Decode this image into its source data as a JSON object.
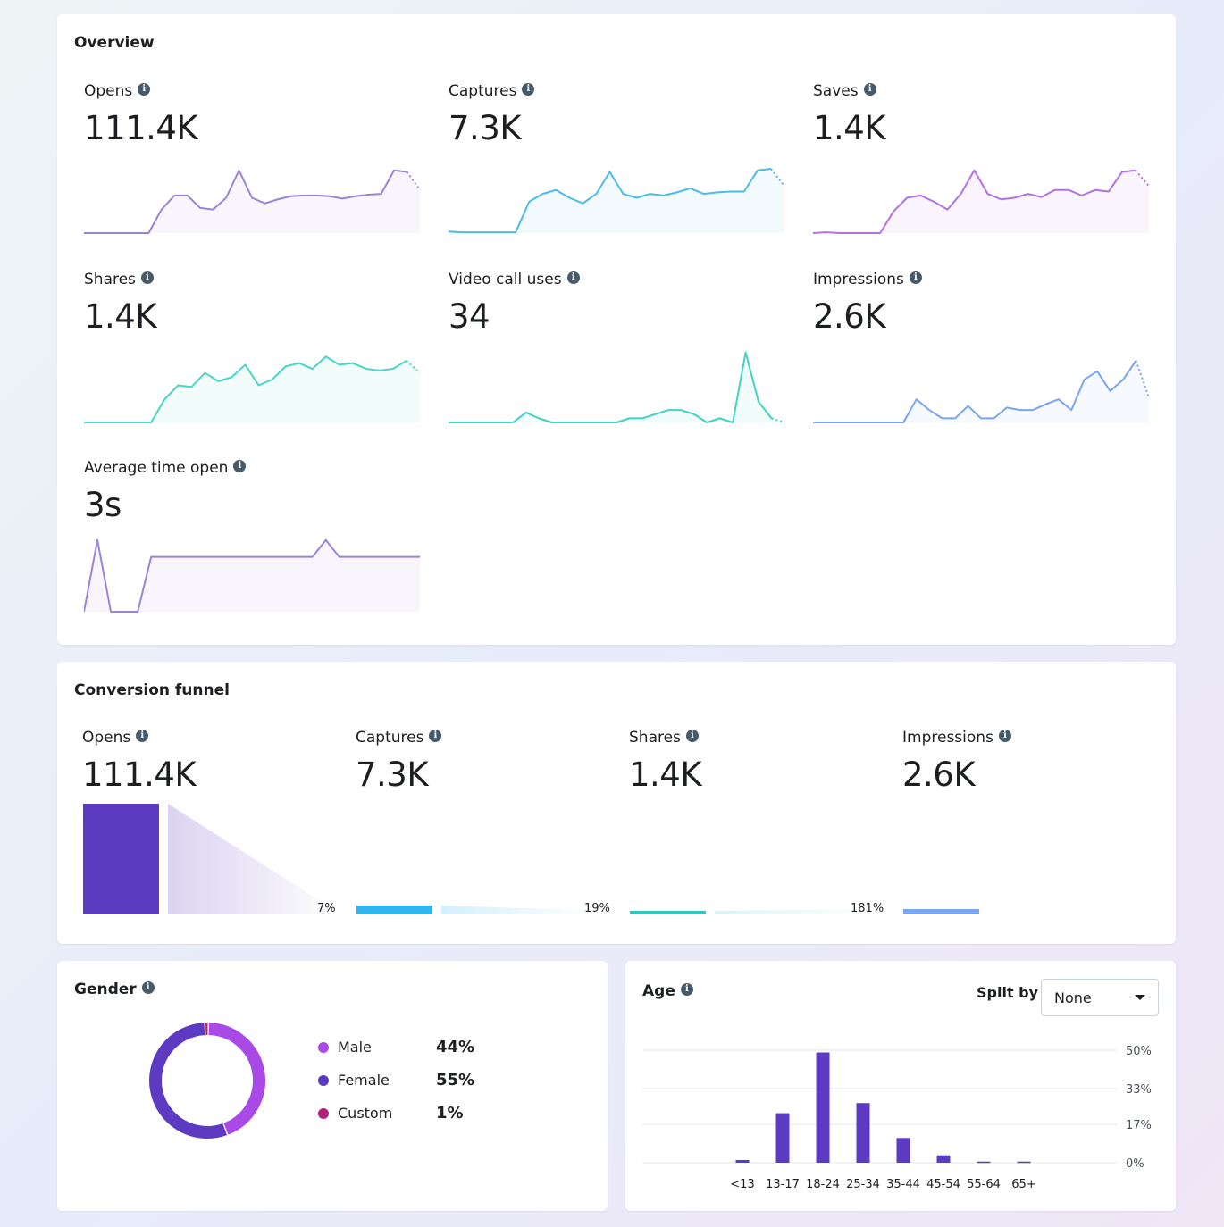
{
  "overview": {
    "title": "Overview",
    "metrics": [
      {
        "label": "Opens",
        "value": "111.4K"
      },
      {
        "label": "Captures",
        "value": "7.3K"
      },
      {
        "label": "Saves",
        "value": "1.4K"
      },
      {
        "label": "Shares",
        "value": "1.4K"
      },
      {
        "label": "Video call uses",
        "value": "34"
      },
      {
        "label": "Impressions",
        "value": "2.6K"
      },
      {
        "label": "Average time open",
        "value": "3s"
      }
    ]
  },
  "colors": {
    "opens": "#9b84d6",
    "captures": "#4cbce6",
    "saves": "#b272e6",
    "shares": "#46d6c6",
    "video": "#3fd3c3",
    "impressions": "#7aa5f2",
    "avg": "#9b84d6",
    "funnel_opens": "#5c3bc2",
    "funnel_captures": "#2fb4ec",
    "funnel_shares": "#2ec8c0",
    "funnel_impressions": "#7aa5f2",
    "male": "#a94ae6",
    "female": "#5c3bc2",
    "custom": "#b0207a",
    "age_bar": "#5c3bc2"
  },
  "funnel": {
    "title": "Conversion funnel",
    "steps": [
      {
        "label": "Opens",
        "value": "111.4K",
        "pct": "7%"
      },
      {
        "label": "Captures",
        "value": "7.3K",
        "pct": "19%"
      },
      {
        "label": "Shares",
        "value": "1.4K",
        "pct": "181%"
      },
      {
        "label": "Impressions",
        "value": "2.6K"
      }
    ]
  },
  "gender": {
    "title": "Gender",
    "items": [
      {
        "label": "Male",
        "pct": "44%"
      },
      {
        "label": "Female",
        "pct": "55%"
      },
      {
        "label": "Custom",
        "pct": "1%"
      }
    ]
  },
  "age": {
    "title": "Age",
    "split_label": "Split by",
    "split_value": "None"
  },
  "chart_data": [
    {
      "type": "line",
      "name": "opens-sparkline",
      "values": [
        0,
        0,
        0,
        0,
        0,
        0,
        30,
        48,
        48,
        32,
        30,
        45,
        80,
        45,
        38,
        43,
        47,
        48,
        48,
        47,
        44,
        47,
        49,
        50,
        80,
        78,
        55
      ]
    },
    {
      "type": "line",
      "name": "captures-sparkline",
      "values": [
        2,
        1,
        1,
        1,
        1,
        1,
        40,
        50,
        55,
        45,
        38,
        50,
        78,
        50,
        45,
        50,
        48,
        52,
        57,
        50,
        52,
        53,
        53,
        80,
        82,
        60
      ]
    },
    {
      "type": "line",
      "name": "saves-sparkline",
      "values": [
        0,
        1,
        0,
        0,
        0,
        0,
        28,
        45,
        48,
        40,
        30,
        50,
        80,
        50,
        43,
        45,
        50,
        46,
        55,
        55,
        48,
        55,
        53,
        78,
        80,
        60
      ]
    },
    {
      "type": "line",
      "name": "shares-sparkline",
      "values": [
        0,
        0,
        0,
        0,
        0,
        0,
        28,
        45,
        43,
        60,
        50,
        55,
        70,
        45,
        52,
        68,
        72,
        65,
        80,
        70,
        72,
        65,
        63,
        65,
        75,
        60
      ]
    },
    {
      "type": "line",
      "name": "video-call-uses-sparkline",
      "values": [
        0,
        0,
        0,
        0,
        0,
        0,
        12,
        5,
        0,
        0,
        0,
        0,
        0,
        0,
        5,
        5,
        10,
        15,
        15,
        10,
        0,
        5,
        0,
        85,
        25,
        5,
        0
      ]
    },
    {
      "type": "line",
      "name": "impressions-sparkline",
      "values": [
        0,
        0,
        0,
        0,
        0,
        0,
        0,
        0,
        28,
        15,
        5,
        5,
        20,
        5,
        5,
        18,
        15,
        15,
        22,
        28,
        15,
        52,
        62,
        38,
        52,
        75,
        30
      ]
    },
    {
      "type": "line",
      "name": "average-time-open-sparkline",
      "values": [
        0,
        85,
        0,
        0,
        0,
        65,
        65,
        65,
        65,
        65,
        65,
        65,
        65,
        65,
        65,
        65,
        65,
        65,
        85,
        65,
        65,
        65,
        65,
        65,
        65,
        65
      ]
    },
    {
      "type": "pie",
      "name": "gender-donut",
      "categories": [
        "Male",
        "Female",
        "Custom"
      ],
      "values": [
        44,
        55,
        1
      ]
    },
    {
      "type": "bar",
      "name": "age-bar-chart",
      "categories": [
        "<13",
        "13-17",
        "18-24",
        "25-34",
        "35-44",
        "45-54",
        "55-64",
        "65+"
      ],
      "values": [
        1.2,
        22,
        49,
        26.5,
        11,
        3.3,
        0.5,
        0.5
      ],
      "y_ticks": [
        "0%",
        "17%",
        "33%",
        "50%"
      ],
      "y_tick_values": [
        0,
        17,
        33,
        50
      ],
      "ylim": [
        0,
        50
      ]
    }
  ]
}
